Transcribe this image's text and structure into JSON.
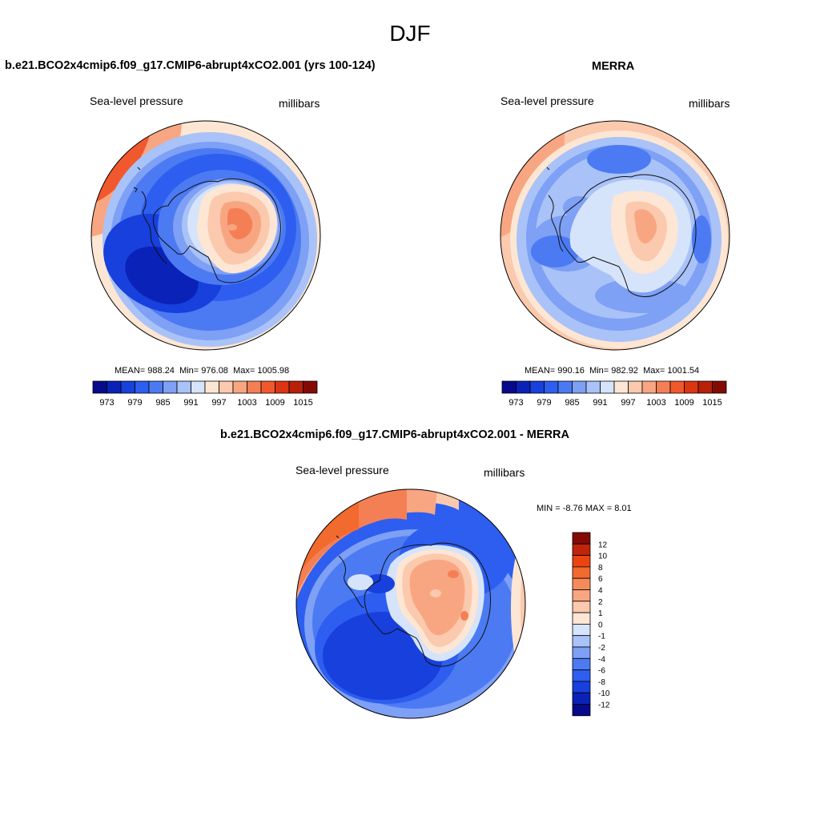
{
  "main_title": "DJF",
  "panels": {
    "model": {
      "title": "b.e21.BCO2x4cmip6.f09_g17.CMIP6-abrupt4xCO2.001 (yrs 100-124)",
      "left_label": "Sea-level pressure",
      "right_label": "millibars",
      "stats": {
        "mean_label": "MEAN=",
        "mean": "988.24",
        "min_label": "Min=",
        "min": "976.08",
        "max_label": "Max=",
        "max": "1005.98"
      },
      "colorbar_ticks": [
        "973",
        "979",
        "985",
        "991",
        "997",
        "1003",
        "1009",
        "1015"
      ]
    },
    "obs": {
      "title": "MERRA",
      "left_label": "Sea-level pressure",
      "right_label": "millibars",
      "stats": {
        "mean_label": "MEAN=",
        "mean": "990.16",
        "min_label": "Min=",
        "min": "982.92",
        "max_label": "Max=",
        "max": "1001.54"
      },
      "colorbar_ticks": [
        "973",
        "979",
        "985",
        "991",
        "997",
        "1003",
        "1009",
        "1015"
      ]
    },
    "diff": {
      "title": "b.e21.BCO2x4cmip6.f09_g17.CMIP6-abrupt4xCO2.001 - MERRA",
      "left_label": "Sea-level pressure",
      "right_label": "millibars",
      "stats": {
        "min_label": "MIN =",
        "min": "-8.76",
        "max_label": "MAX =",
        "max": "8.01"
      },
      "colorbar_ticks": [
        "12",
        "10",
        "8",
        "6",
        "4",
        "2",
        "1",
        "0",
        "-1",
        "-2",
        "-4",
        "-6",
        "-8",
        "-10",
        "-12"
      ]
    }
  },
  "colors": {
    "abs_palette": [
      "#070a8a",
      "#0a22b8",
      "#1740dc",
      "#2d5ef0",
      "#4c7af2",
      "#7ea0f5",
      "#a9c2f8",
      "#d6e4fb",
      "#fde6d3",
      "#fbc9ad",
      "#f8a682",
      "#f57f55",
      "#f2582d",
      "#dc3512",
      "#b82008",
      "#840a05"
    ],
    "diff_palette": [
      "#840a05",
      "#c1240b",
      "#ec4411",
      "#f26a2e",
      "#f58b5a",
      "#f8a682",
      "#fbc9ad",
      "#fde6d3",
      "#d6e4fb",
      "#a9c2f8",
      "#7ea0f5",
      "#4c7af2",
      "#2d5ef0",
      "#1740dc",
      "#0a22b8",
      "#070a8a"
    ],
    "coast": "#111111"
  }
}
